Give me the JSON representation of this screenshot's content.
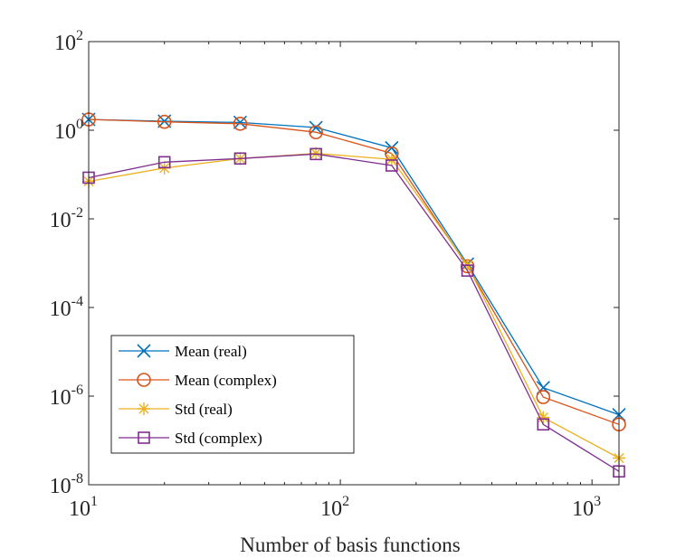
{
  "chart_data": {
    "type": "line",
    "xscale": "log",
    "yscale": "log",
    "xlim": [
      10,
      1280
    ],
    "ylim": [
      1e-08,
      100
    ],
    "xlabel": "Number of basis functions",
    "ylabel": "",
    "title": "",
    "grid": false,
    "legend_position": "bottom-left",
    "x_ticks": [
      {
        "value": 10,
        "base": "10",
        "exp": "1"
      },
      {
        "value": 100,
        "base": "10",
        "exp": "2"
      },
      {
        "value": 1000,
        "base": "10",
        "exp": "3"
      }
    ],
    "y_ticks": [
      {
        "value": 1e-08,
        "base": "10",
        "exp": "-8"
      },
      {
        "value": 1e-06,
        "base": "10",
        "exp": "-6"
      },
      {
        "value": 0.0001,
        "base": "10",
        "exp": "-4"
      },
      {
        "value": 0.01,
        "base": "10",
        "exp": "-2"
      },
      {
        "value": 1,
        "base": "10",
        "exp": "0"
      },
      {
        "value": 100,
        "base": "10",
        "exp": "2"
      }
    ],
    "x": [
      10,
      20,
      40,
      80,
      160,
      320,
      640,
      1280
    ],
    "series": [
      {
        "name": "Mean  (real)",
        "color": "#0072BD",
        "marker": "x",
        "values": [
          1.75,
          1.6,
          1.5,
          1.15,
          0.4,
          0.00095,
          1.55e-06,
          3.8e-07
        ]
      },
      {
        "name": "Mean  (complex)",
        "color": "#D95319",
        "marker": "o",
        "values": [
          1.75,
          1.55,
          1.4,
          0.9,
          0.3,
          0.00085,
          9.5e-07,
          2.3e-07
        ]
      },
      {
        "name": "Std  (real)",
        "color": "#EDB120",
        "marker": "*",
        "values": [
          0.07,
          0.14,
          0.23,
          0.3,
          0.22,
          0.0009,
          3.3e-07,
          4e-08
        ]
      },
      {
        "name": "Std  (complex)",
        "color": "#7E2F8E",
        "marker": "s",
        "values": [
          0.085,
          0.19,
          0.23,
          0.29,
          0.16,
          0.00068,
          2.3e-07,
          2e-08
        ]
      }
    ]
  }
}
